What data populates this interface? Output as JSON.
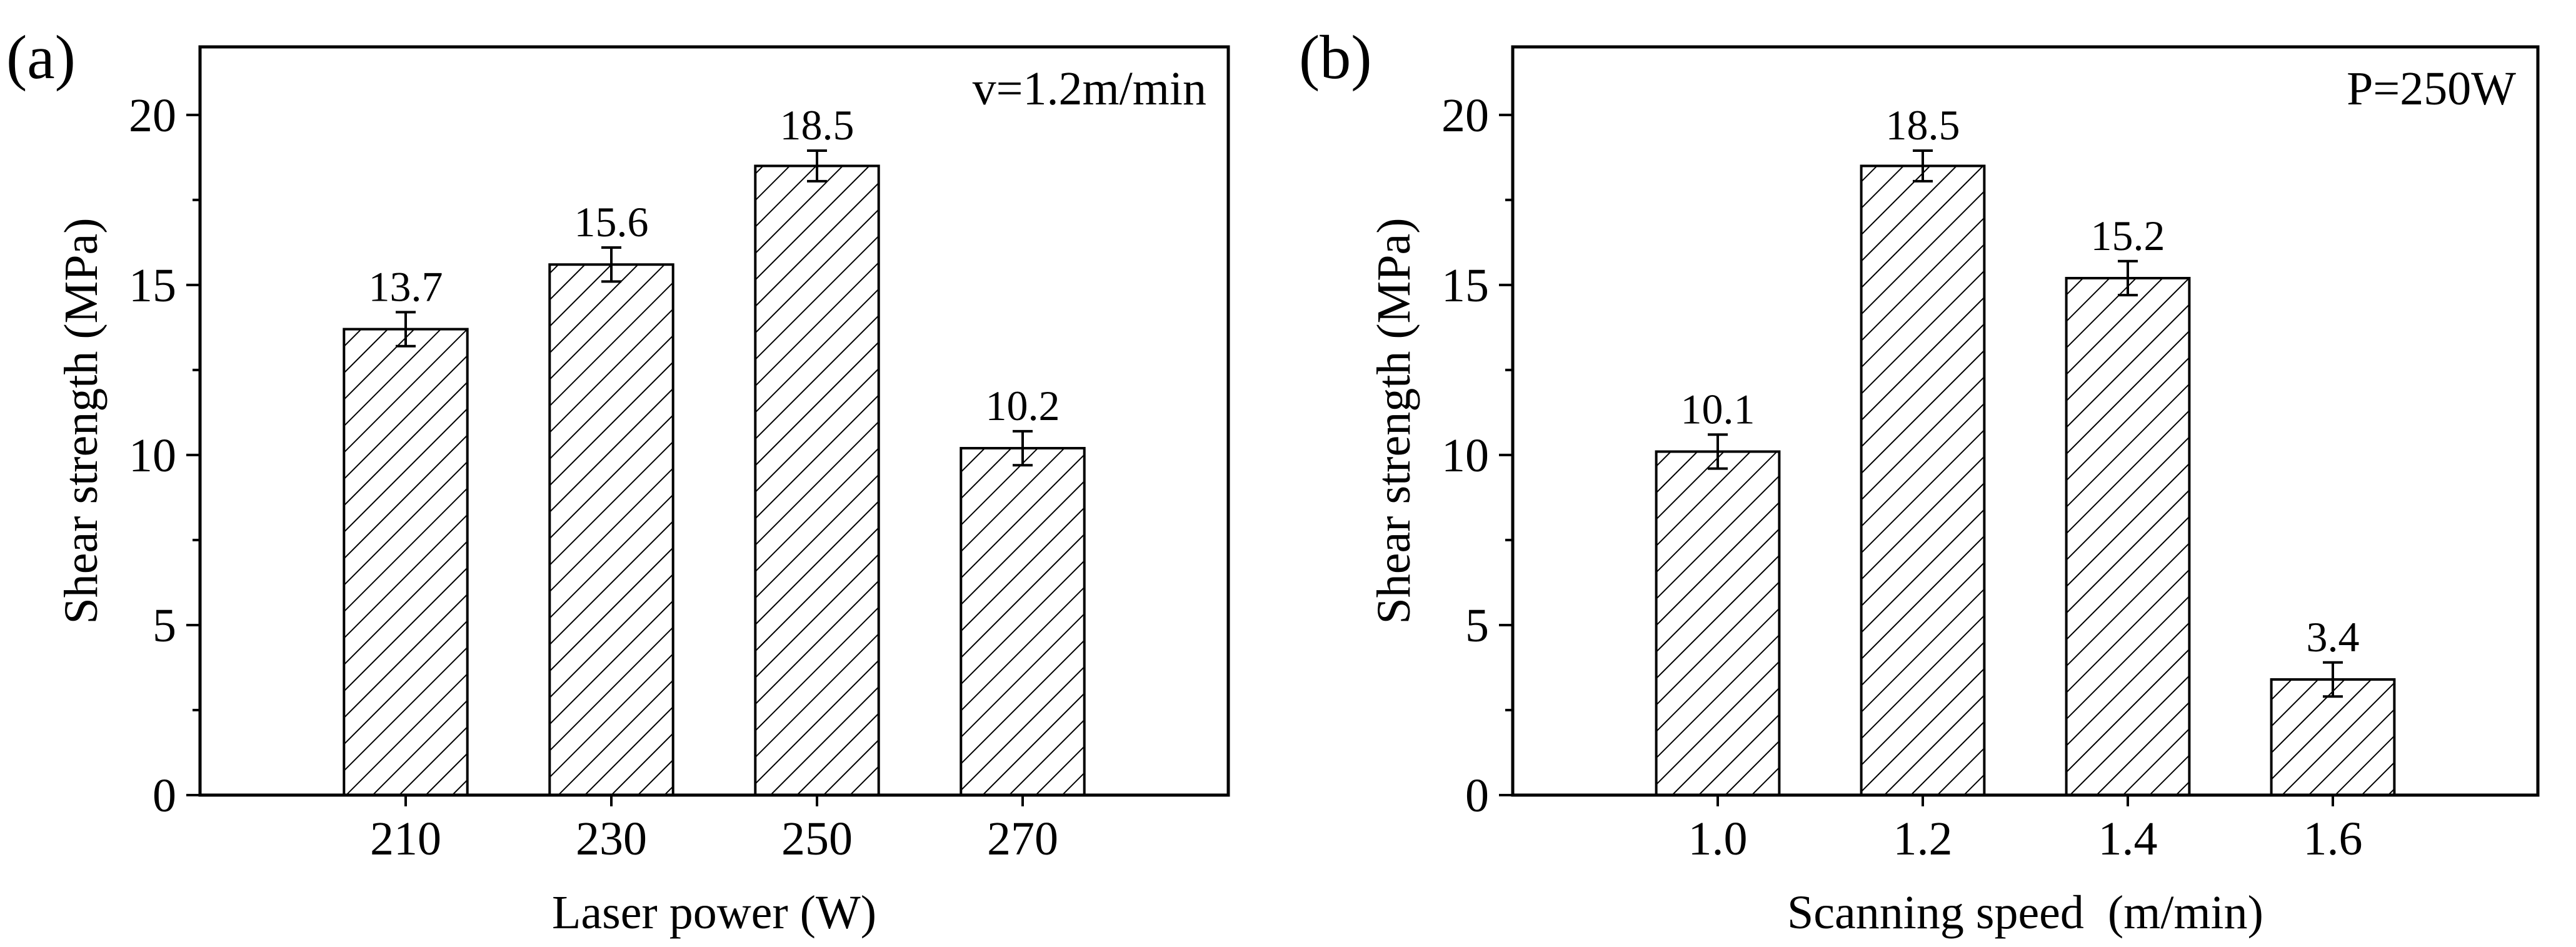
{
  "chart_data": [
    {
      "type": "bar",
      "panel_label": "(a)",
      "annotation": "v=1.2m/min",
      "categories": [
        "210",
        "230",
        "250",
        "270"
      ],
      "values": [
        13.7,
        15.6,
        18.5,
        10.2
      ],
      "value_labels": [
        "13.7",
        "15.6",
        "18.5",
        "10.2"
      ],
      "errors": [
        0.5,
        0.5,
        0.45,
        0.5
      ],
      "xlabel": "Laser power (W)",
      "ylabel": "Shear strength (MPa)",
      "ylim": [
        0,
        22
      ],
      "yticks": [
        0,
        5,
        10,
        15,
        20
      ],
      "ytick_labels": [
        "0",
        "5",
        "10",
        "15",
        "20"
      ],
      "bar_fill": "hatch-diagonal",
      "grid": false
    },
    {
      "type": "bar",
      "panel_label": "(b)",
      "annotation": "P=250W",
      "categories": [
        "1.0",
        "1.2",
        "1.4",
        "1.6"
      ],
      "values": [
        10.1,
        18.5,
        15.2,
        3.4
      ],
      "value_labels": [
        "10.1",
        "18.5",
        "15.2",
        "3.4"
      ],
      "errors": [
        0.5,
        0.45,
        0.5,
        0.5
      ],
      "xlabel": "Scanning speed  (m/min)",
      "ylabel": "Shear strength (MPa)",
      "ylim": [
        0,
        22
      ],
      "yticks": [
        0,
        5,
        10,
        15,
        20
      ],
      "ytick_labels": [
        "0",
        "5",
        "10",
        "15",
        "20"
      ],
      "bar_fill": "hatch-diagonal",
      "grid": false
    }
  ],
  "colors": {
    "ink": "#000000",
    "background": "#ffffff"
  }
}
